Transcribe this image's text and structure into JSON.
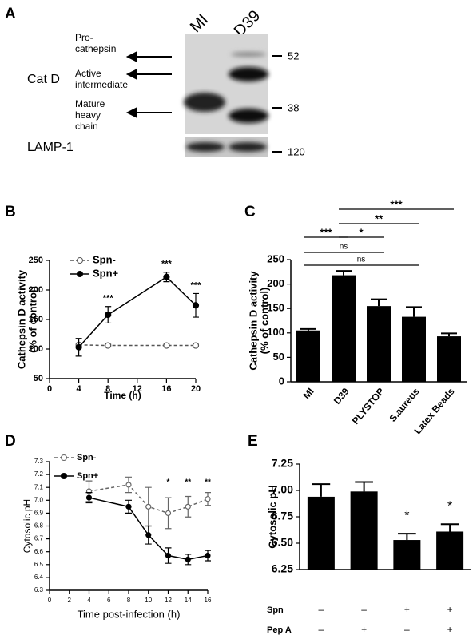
{
  "blot": {
    "panel": "A",
    "lanes": [
      "MI",
      "D39"
    ],
    "protein": "Cat D",
    "bands": [
      [
        "Pro-",
        "cathepsin"
      ],
      [
        "Active",
        "intermediate"
      ],
      [
        "Mature",
        "heavy",
        "chain"
      ]
    ],
    "loading": "LAMP-1",
    "markers": [
      52,
      38,
      120
    ]
  },
  "chart_data": [
    {
      "panel": "B",
      "type": "line",
      "x_label": "Time (h)",
      "y_label": [
        "Cathepsin D activity",
        "(% of control)"
      ],
      "x": [
        4,
        8,
        16,
        20
      ],
      "xlim": [
        0,
        20
      ],
      "xticks": [
        0,
        4,
        8,
        12,
        16,
        20
      ],
      "ylim": [
        50,
        250
      ],
      "yticks": [
        50,
        100,
        150,
        200,
        250
      ],
      "series": [
        {
          "name": "Spn-",
          "color": "#555555",
          "marker": "open",
          "dashed": true,
          "values": [
            107,
            106,
            106,
            106
          ],
          "errors": [
            3,
            2,
            2,
            2
          ]
        },
        {
          "name": "Spn+",
          "color": "#000000",
          "marker": "filled",
          "dashed": false,
          "values": [
            103,
            158,
            222,
            174
          ],
          "errors": [
            15,
            14,
            8,
            20
          ]
        }
      ],
      "annotations": [
        {
          "x": 8,
          "text": "***"
        },
        {
          "x": 16,
          "text": "***"
        },
        {
          "x": 20,
          "text": "***"
        }
      ]
    },
    {
      "panel": "C",
      "type": "bar",
      "y_label": [
        "Cathepsin D activity",
        "(% of control)"
      ],
      "categories": [
        "MI",
        "D39",
        "PLYSTOP",
        "S.aureus",
        "Latex Beads"
      ],
      "values": [
        105,
        218,
        155,
        133,
        93
      ],
      "errors": [
        3,
        9,
        14,
        20,
        6
      ],
      "color": "#000000",
      "ylim": [
        0,
        250
      ],
      "yticks": [
        0,
        50,
        100,
        150,
        200,
        250
      ],
      "annotations": [
        "***",
        "*",
        "**",
        "***",
        "ns",
        "ns"
      ]
    },
    {
      "panel": "D",
      "type": "line",
      "x_label": "Time post-infection (h)",
      "y_label": [
        "Cytosolic pH"
      ],
      "x": [
        4,
        8,
        10,
        12,
        14,
        16
      ],
      "xlim": [
        0,
        16
      ],
      "xticks": [
        0,
        2,
        4,
        6,
        8,
        10,
        12,
        14,
        16
      ],
      "ylim": [
        6.3,
        7.3
      ],
      "yticks": [
        6.3,
        6.4,
        6.5,
        6.6,
        6.7,
        6.8,
        6.9,
        {
          "value": 7,
          "label": "7.0"
        },
        7.1,
        7.2,
        7.3
      ],
      "series": [
        {
          "name": "Spn-",
          "color": "#666666",
          "marker": "open",
          "dashed": true,
          "values": [
            7.07,
            7.12,
            6.95,
            6.9,
            6.95,
            7.01
          ],
          "errors": [
            0.08,
            0.06,
            0.15,
            0.12,
            0.08,
            0.05
          ]
        },
        {
          "name": "Spn+",
          "color": "#000000",
          "marker": "filled",
          "dashed": false,
          "values": [
            7.02,
            6.95,
            6.73,
            6.57,
            6.54,
            6.57
          ],
          "errors": [
            0.04,
            0.05,
            0.07,
            0.06,
            0.04,
            0.04
          ]
        }
      ],
      "annotations": [
        {
          "x": 12,
          "text": "*"
        },
        {
          "x": 14,
          "text": "**"
        },
        {
          "x": 16,
          "text": "**"
        }
      ]
    },
    {
      "panel": "E",
      "type": "bar",
      "y_label": [
        "Cytosolic pH"
      ],
      "categories": [
        null,
        null,
        null,
        null
      ],
      "values": [
        6.94,
        6.99,
        6.53,
        6.61
      ],
      "errors": [
        0.12,
        0.09,
        0.06,
        0.07
      ],
      "color": "#000000",
      "ylim": [
        6.25,
        7.25
      ],
      "yticks": [
        6.25,
        {
          "value": 6.5,
          "label": "6.50"
        },
        6.75,
        {
          "value": 7,
          "label": "7.00"
        },
        7.25
      ],
      "significance": [
        null,
        null,
        "*",
        "*"
      ],
      "conditions": [
        {
          "name": "Spn",
          "cells": [
            "–",
            "–",
            "+",
            "+"
          ]
        },
        {
          "name": "Pep A",
          "cells": [
            "–",
            "+",
            "–",
            "+"
          ]
        }
      ]
    }
  ]
}
